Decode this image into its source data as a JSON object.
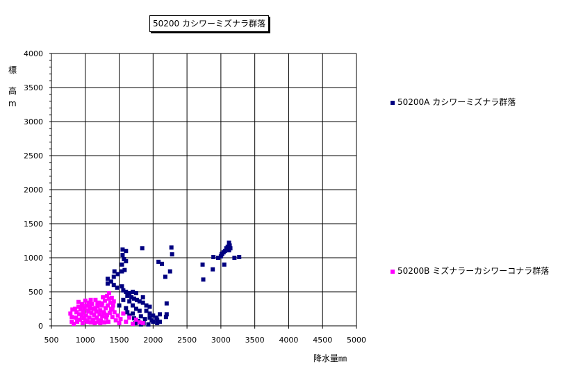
{
  "chart_data": {
    "type": "scatter",
    "title": "50200 カシワーミズナラ群落",
    "xlabel": "降水量㎜",
    "ylabel": [
      "標",
      "高",
      "m"
    ],
    "xlim": [
      500,
      5000
    ],
    "ylim": [
      0,
      4000
    ],
    "x_ticks": [
      500,
      1000,
      1500,
      2000,
      2500,
      3000,
      3500,
      4000,
      4500,
      5000
    ],
    "y_ticks": [
      0,
      500,
      1000,
      1500,
      2000,
      2500,
      3000,
      3500,
      4000
    ],
    "grid": true,
    "legend_placement": "right",
    "series": [
      {
        "name": "50200A カシワーミズナラ群落",
        "color": "#000080",
        "points": [
          [
            1550,
            1120
          ],
          [
            1600,
            1100
          ],
          [
            1550,
            1040
          ],
          [
            1570,
            980
          ],
          [
            1600,
            950
          ],
          [
            1540,
            900
          ],
          [
            1580,
            820
          ],
          [
            1540,
            800
          ],
          [
            1430,
            800
          ],
          [
            1480,
            760
          ],
          [
            1420,
            720
          ],
          [
            1330,
            690
          ],
          [
            1380,
            650
          ],
          [
            1330,
            620
          ],
          [
            1420,
            600
          ],
          [
            1470,
            560
          ],
          [
            1540,
            580
          ],
          [
            1560,
            520
          ],
          [
            1600,
            500
          ],
          [
            1650,
            480
          ],
          [
            1700,
            500
          ],
          [
            1750,
            480
          ],
          [
            1620,
            440
          ],
          [
            1680,
            420
          ],
          [
            1720,
            400
          ],
          [
            1760,
            380
          ],
          [
            1800,
            360
          ],
          [
            1850,
            340
          ],
          [
            1900,
            300
          ],
          [
            1950,
            280
          ],
          [
            1850,
            420
          ],
          [
            1650,
            360
          ],
          [
            1700,
            300
          ],
          [
            1750,
            250
          ],
          [
            1800,
            220
          ],
          [
            1620,
            200
          ],
          [
            1900,
            220
          ],
          [
            1950,
            180
          ],
          [
            2000,
            150
          ],
          [
            2050,
            120
          ],
          [
            1880,
            100
          ],
          [
            1980,
            80
          ],
          [
            2100,
            60
          ],
          [
            1650,
            150
          ],
          [
            1720,
            110
          ],
          [
            1780,
            70
          ],
          [
            1860,
            40
          ],
          [
            1930,
            20
          ],
          [
            1600,
            260
          ],
          [
            1700,
            180
          ],
          [
            2000,
            60
          ],
          [
            2060,
            40
          ],
          [
            1950,
            120
          ],
          [
            1820,
            140
          ],
          [
            1500,
            300
          ],
          [
            1560,
            380
          ],
          [
            1840,
            1140
          ],
          [
            2080,
            940
          ],
          [
            2130,
            910
          ],
          [
            2180,
            720
          ],
          [
            2250,
            800
          ],
          [
            2270,
            1150
          ],
          [
            2280,
            1050
          ],
          [
            2200,
            330
          ],
          [
            2200,
            170
          ],
          [
            2100,
            170
          ],
          [
            2190,
            130
          ],
          [
            2060,
            90
          ],
          [
            1820,
            20
          ],
          [
            1740,
            40
          ],
          [
            2730,
            900
          ],
          [
            2740,
            680
          ],
          [
            2880,
            830
          ],
          [
            2890,
            1010
          ],
          [
            2960,
            1000
          ],
          [
            3000,
            1020
          ],
          [
            3020,
            1060
          ],
          [
            3040,
            1080
          ],
          [
            3060,
            1100
          ],
          [
            3080,
            1140
          ],
          [
            3100,
            1160
          ],
          [
            3120,
            1220
          ],
          [
            3130,
            1180
          ],
          [
            3140,
            1140
          ],
          [
            3050,
            900
          ],
          [
            3200,
            1000
          ],
          [
            3270,
            1010
          ],
          [
            3120,
            1110
          ],
          [
            3010,
            1050
          ]
        ]
      },
      {
        "name": "50200B ミズナラーカシワーコナラ群落",
        "color": "#ff00ff",
        "points": [
          [
            780,
            180
          ],
          [
            800,
            130
          ],
          [
            800,
            60
          ],
          [
            810,
            240
          ],
          [
            830,
            30
          ],
          [
            850,
            250
          ],
          [
            860,
            120
          ],
          [
            870,
            200
          ],
          [
            880,
            60
          ],
          [
            900,
            280
          ],
          [
            910,
            170
          ],
          [
            920,
            90
          ],
          [
            930,
            240
          ],
          [
            950,
            320
          ],
          [
            960,
            40
          ],
          [
            970,
            200
          ],
          [
            980,
            110
          ],
          [
            990,
            260
          ],
          [
            1000,
            370
          ],
          [
            1010,
            150
          ],
          [
            1020,
            300
          ],
          [
            1030,
            60
          ],
          [
            1040,
            220
          ],
          [
            1050,
            340
          ],
          [
            1060,
            120
          ],
          [
            1070,
            280
          ],
          [
            1080,
            50
          ],
          [
            1090,
            190
          ],
          [
            1100,
            320
          ],
          [
            1110,
            90
          ],
          [
            1120,
            250
          ],
          [
            1130,
            160
          ],
          [
            1140,
            40
          ],
          [
            1150,
            380
          ],
          [
            1160,
            210
          ],
          [
            1170,
            120
          ],
          [
            1180,
            290
          ],
          [
            1190,
            60
          ],
          [
            1200,
            340
          ],
          [
            1210,
            170
          ],
          [
            1220,
            230
          ],
          [
            1230,
            80
          ],
          [
            1240,
            300
          ],
          [
            1250,
            140
          ],
          [
            1260,
            420
          ],
          [
            1270,
            200
          ],
          [
            1280,
            50
          ],
          [
            1290,
            370
          ],
          [
            1300,
            260
          ],
          [
            1310,
            120
          ],
          [
            1320,
            440
          ],
          [
            1330,
            300
          ],
          [
            1340,
            60
          ],
          [
            1350,
            480
          ],
          [
            1360,
            190
          ],
          [
            1370,
            340
          ],
          [
            1380,
            250
          ],
          [
            1390,
            410
          ],
          [
            1400,
            130
          ],
          [
            1410,
            300
          ],
          [
            1420,
            360
          ],
          [
            1430,
            200
          ],
          [
            1450,
            80
          ],
          [
            1480,
            150
          ],
          [
            1500,
            40
          ],
          [
            1520,
            100
          ],
          [
            1560,
            180
          ],
          [
            1600,
            60
          ],
          [
            1650,
            120
          ],
          [
            1700,
            30
          ],
          [
            1750,
            90
          ],
          [
            1800,
            50
          ],
          [
            1850,
            40
          ],
          [
            950,
            150
          ],
          [
            1050,
            210
          ],
          [
            1150,
            260
          ],
          [
            1250,
            330
          ],
          [
            1350,
            400
          ],
          [
            1080,
            380
          ],
          [
            900,
            350
          ],
          [
            1000,
            80
          ],
          [
            1120,
            60
          ],
          [
            1220,
            40
          ],
          [
            1320,
            160
          ],
          [
            1400,
            240
          ],
          [
            1180,
            330
          ],
          [
            1280,
            180
          ],
          [
            1060,
            260
          ],
          [
            960,
            300
          ]
        ]
      }
    ]
  }
}
